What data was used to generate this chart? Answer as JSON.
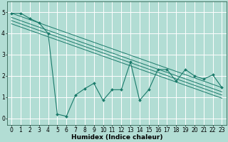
{
  "title": "",
  "xlabel": "Humidex (Indice chaleur)",
  "ylabel": "",
  "background_color": "#b2ddd4",
  "grid_color": "#ffffff",
  "line_color": "#1a7a6a",
  "xlim": [
    -0.5,
    23.5
  ],
  "ylim": [
    -0.3,
    5.5
  ],
  "xticks": [
    0,
    1,
    2,
    3,
    4,
    5,
    6,
    7,
    8,
    9,
    10,
    11,
    12,
    13,
    14,
    15,
    16,
    17,
    18,
    19,
    20,
    21,
    22,
    23
  ],
  "yticks": [
    0,
    1,
    2,
    3,
    4,
    5
  ],
  "series": [
    [
      0,
      4.95
    ],
    [
      1,
      4.95
    ],
    [
      2,
      4.7
    ],
    [
      3,
      4.5
    ],
    [
      4,
      4.0
    ],
    [
      5,
      0.2
    ],
    [
      6,
      0.1
    ],
    [
      7,
      1.1
    ],
    [
      8,
      1.4
    ],
    [
      9,
      1.65
    ],
    [
      10,
      0.85
    ],
    [
      11,
      1.35
    ],
    [
      12,
      1.35
    ],
    [
      13,
      2.65
    ],
    [
      14,
      0.85
    ],
    [
      15,
      1.35
    ],
    [
      16,
      2.3
    ],
    [
      17,
      2.3
    ],
    [
      18,
      1.75
    ],
    [
      19,
      2.3
    ],
    [
      20,
      2.0
    ],
    [
      21,
      1.85
    ],
    [
      22,
      2.05
    ],
    [
      23,
      1.45
    ]
  ],
  "trend_lines": [
    [
      [
        0,
        4.95
      ],
      [
        23,
        1.45
      ]
    ],
    [
      [
        0,
        4.75
      ],
      [
        23,
        1.25
      ]
    ],
    [
      [
        0,
        4.6
      ],
      [
        23,
        1.1
      ]
    ],
    [
      [
        0,
        4.45
      ],
      [
        23,
        0.95
      ]
    ]
  ],
  "figsize": [
    3.2,
    2.0
  ],
  "dpi": 100,
  "tick_fontsize": 5.5,
  "xlabel_fontsize": 6.5
}
